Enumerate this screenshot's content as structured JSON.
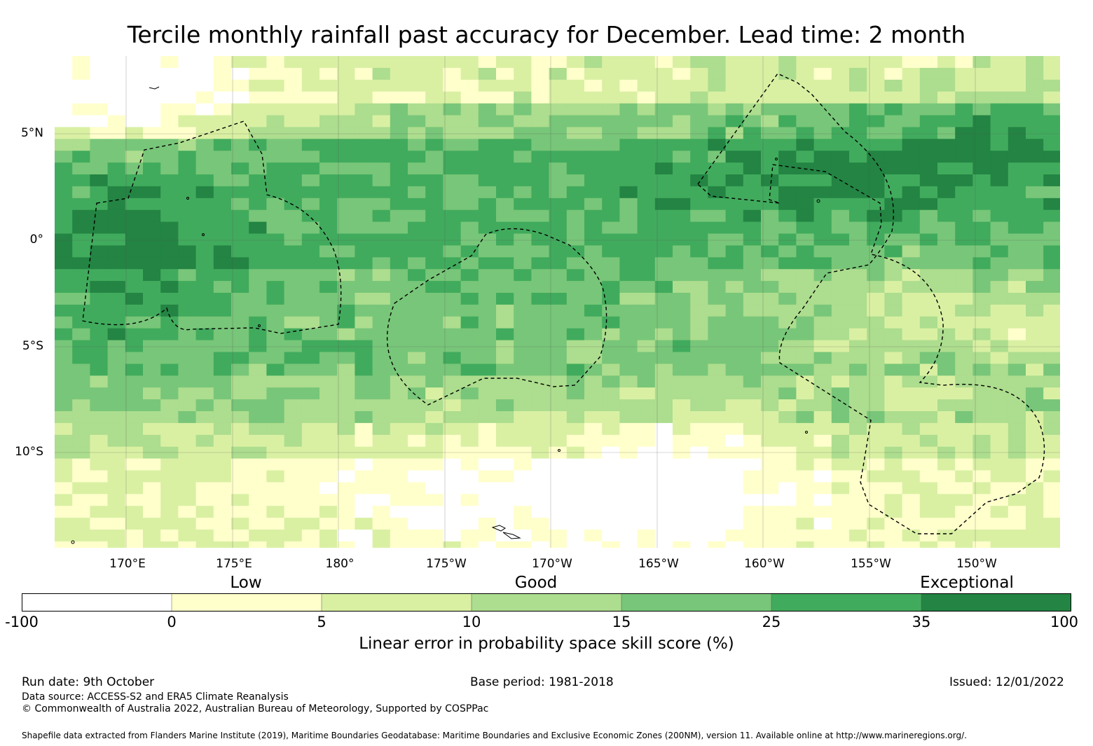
{
  "title": "Tercile monthly rainfall past accuracy for December. Lead time: 2 month",
  "map": {
    "lat_labels": [
      "5°N",
      "0°",
      "5°S",
      "10°S"
    ],
    "lon_labels": [
      "170°E",
      "175°E",
      "180°",
      "175°W",
      "170°W",
      "165°W",
      "160°W",
      "155°W",
      "150°W"
    ]
  },
  "colorbar": {
    "categories": [
      "Low",
      "Good",
      "Exceptional"
    ],
    "ticks": [
      "-100",
      "0",
      "5",
      "10",
      "15",
      "25",
      "35",
      "100"
    ],
    "colors": [
      "#ffffff",
      "#ffffcc",
      "#d9f0a3",
      "#addd8e",
      "#78c679",
      "#41ab5d",
      "#238443"
    ],
    "label": "Linear error in probability space skill score (%)"
  },
  "footer": {
    "run_date": "Run date: 9th October",
    "base_period": "Base period: 1981-2018",
    "issued": "Issued: 12/01/2022",
    "data_source": "Data source: ACCESS-S2 and ERA5 Climate Reanalysis",
    "copyright": "© Commonwealth of Australia 2022, Australian Bureau of Meteorology, Supported by COSPPac",
    "shapefile": "Shapefile data extracted from Flanders Marine Institute (2019), Maritime Boundaries Geodatabase: Maritime Boundaries and Exclusive Economic Zones (200NM), version 11. Available online at http://www.marineregions.org/."
  }
}
